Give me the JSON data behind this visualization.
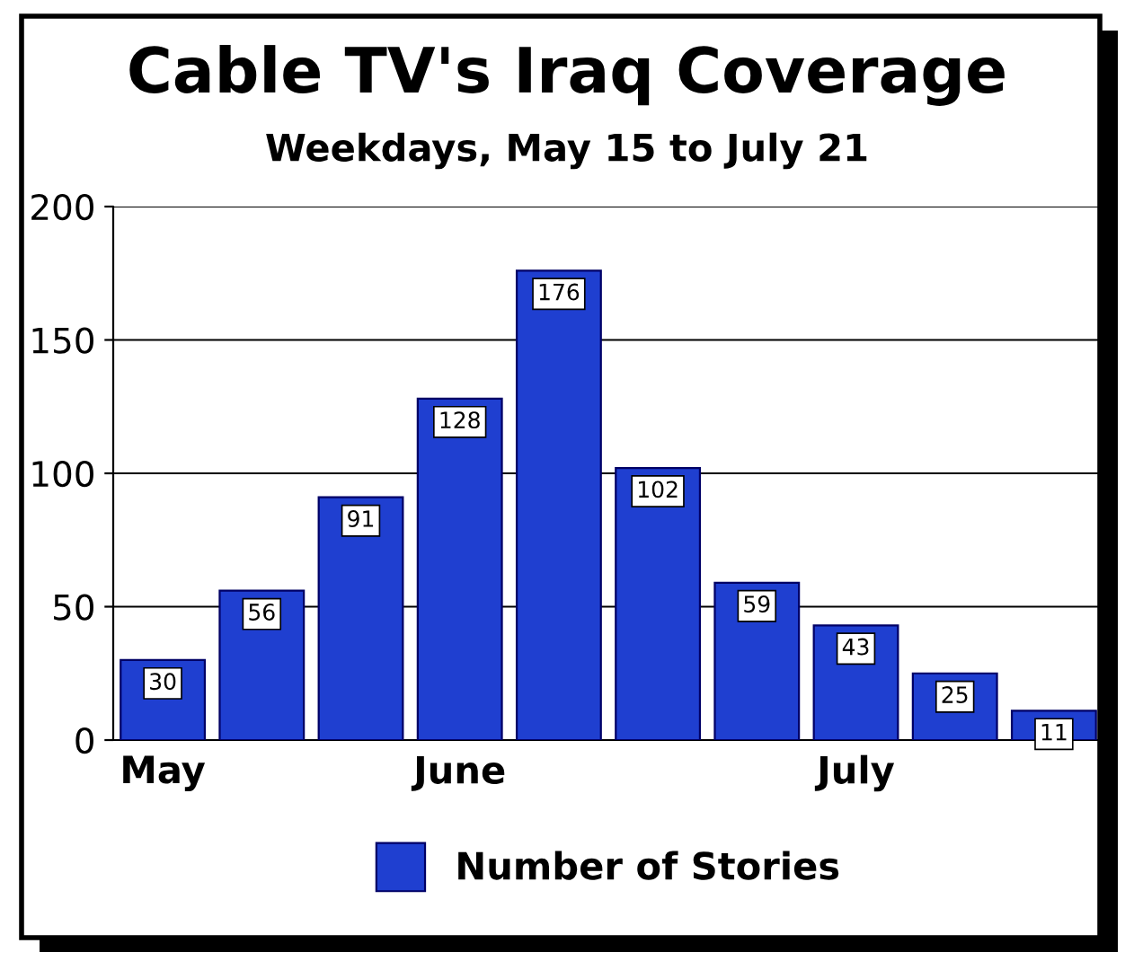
{
  "chart_data": {
    "type": "bar",
    "title": "Cable TV's Iraq Coverage",
    "subtitle": "Weekdays, May 15 to July 21",
    "categories": [
      "May",
      null,
      null,
      "June",
      null,
      null,
      null,
      "July",
      null,
      null
    ],
    "series": [
      {
        "name": "Number of Stories",
        "color": "#1f3fd0",
        "values": [
          30,
          56,
          91,
          128,
          176,
          102,
          59,
          43,
          25,
          11
        ]
      }
    ],
    "ylim": [
      0,
      200
    ],
    "yticks": [
      0,
      50,
      100,
      150,
      200
    ],
    "grid": "y",
    "legend": "bottom",
    "data_labels": true
  }
}
